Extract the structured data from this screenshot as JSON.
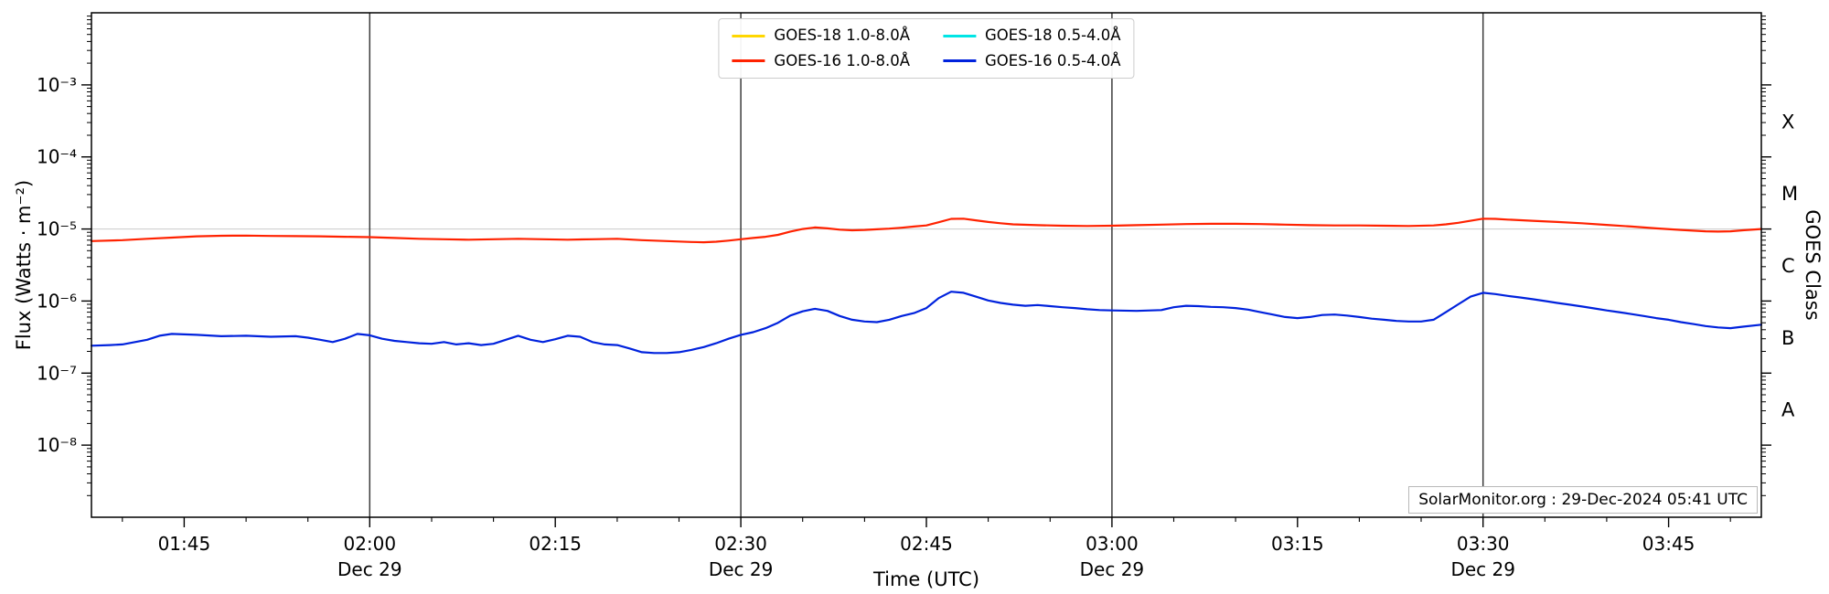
{
  "chart_data": {
    "type": "line",
    "title": "",
    "xlabel": "Time (UTC)",
    "ylabel_left": "Flux (Watts · m⁻²)",
    "ylabel_right": "GOES Class",
    "annotation": "SolarMonitor.org : 29-Dec-2024 05:41 UTC",
    "x_unit": "minutes after 00:00 UTC, Dec 29 2024",
    "xlim": [
      97.5,
      232.5
    ],
    "ylim": [
      1e-09,
      0.01
    ],
    "yscale": "log",
    "grid_y": [
      1e-05
    ],
    "x_minor_step": 5,
    "x_major_ticks": [
      {
        "t": 105,
        "label": "01:45"
      },
      {
        "t": 120,
        "label": "02:00"
      },
      {
        "t": 135,
        "label": "02:15"
      },
      {
        "t": 150,
        "label": "02:30"
      },
      {
        "t": 165,
        "label": "02:45"
      },
      {
        "t": 180,
        "label": "03:00"
      },
      {
        "t": 195,
        "label": "03:15"
      },
      {
        "t": 210,
        "label": "03:30"
      },
      {
        "t": 225,
        "label": "03:45"
      }
    ],
    "day_lines": [
      {
        "t": 120,
        "label": "Dec 29"
      },
      {
        "t": 150,
        "label": "Dec 29"
      },
      {
        "t": 180,
        "label": "Dec 29"
      },
      {
        "t": 210,
        "label": "Dec 29"
      }
    ],
    "y_major_ticks": [
      {
        "v": 0.001,
        "label": "10⁻³"
      },
      {
        "v": 0.0001,
        "label": "10⁻⁴"
      },
      {
        "v": 1e-05,
        "label": "10⁻⁵"
      },
      {
        "v": 1e-06,
        "label": "10⁻⁶"
      },
      {
        "v": 1e-07,
        "label": "10⁻⁷"
      },
      {
        "v": 1e-08,
        "label": "10⁻⁸"
      }
    ],
    "goes_class_labels": [
      {
        "v": 0.0003162,
        "label": "X"
      },
      {
        "v": 3.162e-05,
        "label": "M"
      },
      {
        "v": 3.162e-06,
        "label": "C"
      },
      {
        "v": 3.162e-07,
        "label": "B"
      },
      {
        "v": 3.162e-08,
        "label": "A"
      }
    ],
    "series": [
      {
        "name": "GOES-18 1.0-8.0Å",
        "color": "#ffd700",
        "scale": 1e-06,
        "points": []
      },
      {
        "name": "GOES-16 1.0-8.0Å",
        "color": "#ff2200",
        "scale": 1e-06,
        "points": [
          [
            97.5,
            6.8
          ],
          [
            100,
            7.0
          ],
          [
            102,
            7.3
          ],
          [
            104,
            7.6
          ],
          [
            106,
            7.9
          ],
          [
            108,
            8.05
          ],
          [
            110,
            8.1
          ],
          [
            112,
            8.0
          ],
          [
            114,
            7.95
          ],
          [
            116,
            7.9
          ],
          [
            118,
            7.8
          ],
          [
            120,
            7.7
          ],
          [
            122,
            7.5
          ],
          [
            124,
            7.3
          ],
          [
            126,
            7.2
          ],
          [
            128,
            7.1
          ],
          [
            130,
            7.2
          ],
          [
            132,
            7.3
          ],
          [
            134,
            7.2
          ],
          [
            136,
            7.1
          ],
          [
            138,
            7.2
          ],
          [
            140,
            7.3
          ],
          [
            142,
            7.0
          ],
          [
            144,
            6.8
          ],
          [
            146,
            6.6
          ],
          [
            147,
            6.55
          ],
          [
            148,
            6.65
          ],
          [
            149,
            6.9
          ],
          [
            150,
            7.2
          ],
          [
            151,
            7.5
          ],
          [
            152,
            7.8
          ],
          [
            153,
            8.3
          ],
          [
            154,
            9.2
          ],
          [
            155,
            10.0
          ],
          [
            156,
            10.5
          ],
          [
            157,
            10.2
          ],
          [
            158,
            9.8
          ],
          [
            159,
            9.6
          ],
          [
            160,
            9.7
          ],
          [
            161,
            9.9
          ],
          [
            162,
            10.1
          ],
          [
            163,
            10.4
          ],
          [
            164,
            10.8
          ],
          [
            165,
            11.2
          ],
          [
            166,
            12.4
          ],
          [
            167,
            13.8
          ],
          [
            168,
            13.9
          ],
          [
            169,
            13.2
          ],
          [
            170,
            12.5
          ],
          [
            171,
            12.0
          ],
          [
            172,
            11.6
          ],
          [
            174,
            11.3
          ],
          [
            176,
            11.1
          ],
          [
            178,
            11.0
          ],
          [
            180,
            11.1
          ],
          [
            182,
            11.3
          ],
          [
            184,
            11.5
          ],
          [
            186,
            11.7
          ],
          [
            188,
            11.8
          ],
          [
            190,
            11.8
          ],
          [
            192,
            11.7
          ],
          [
            194,
            11.5
          ],
          [
            196,
            11.3
          ],
          [
            198,
            11.2
          ],
          [
            200,
            11.2
          ],
          [
            202,
            11.1
          ],
          [
            204,
            11.0
          ],
          [
            206,
            11.2
          ],
          [
            207,
            11.6
          ],
          [
            208,
            12.2
          ],
          [
            209,
            13.0
          ],
          [
            210,
            13.9
          ],
          [
            211,
            13.8
          ],
          [
            212,
            13.5
          ],
          [
            214,
            13.0
          ],
          [
            216,
            12.5
          ],
          [
            218,
            12.0
          ],
          [
            220,
            11.4
          ],
          [
            222,
            10.8
          ],
          [
            224,
            10.2
          ],
          [
            226,
            9.7
          ],
          [
            228,
            9.3
          ],
          [
            229,
            9.2
          ],
          [
            230,
            9.3
          ],
          [
            231,
            9.6
          ],
          [
            232.5,
            10.0
          ]
        ]
      },
      {
        "name": "GOES-18 0.5-4.0Å",
        "color": "#00e5e5",
        "scale": 1e-07,
        "points": []
      },
      {
        "name": "GOES-16 0.5-4.0Å",
        "color": "#0022dd",
        "scale": 1e-07,
        "points": [
          [
            97.5,
            2.4
          ],
          [
            99,
            2.45
          ],
          [
            100,
            2.5
          ],
          [
            102,
            2.9
          ],
          [
            103,
            3.3
          ],
          [
            104,
            3.5
          ],
          [
            106,
            3.4
          ],
          [
            108,
            3.25
          ],
          [
            110,
            3.3
          ],
          [
            112,
            3.2
          ],
          [
            114,
            3.25
          ],
          [
            115,
            3.1
          ],
          [
            116,
            2.9
          ],
          [
            117,
            2.7
          ],
          [
            118,
            3.0
          ],
          [
            119,
            3.5
          ],
          [
            120,
            3.35
          ],
          [
            121,
            3.0
          ],
          [
            122,
            2.8
          ],
          [
            123,
            2.7
          ],
          [
            124,
            2.6
          ],
          [
            125,
            2.55
          ],
          [
            126,
            2.7
          ],
          [
            127,
            2.5
          ],
          [
            128,
            2.6
          ],
          [
            129,
            2.45
          ],
          [
            130,
            2.55
          ],
          [
            131,
            2.9
          ],
          [
            132,
            3.3
          ],
          [
            133,
            2.9
          ],
          [
            134,
            2.7
          ],
          [
            135,
            2.95
          ],
          [
            136,
            3.3
          ],
          [
            137,
            3.2
          ],
          [
            138,
            2.7
          ],
          [
            139,
            2.5
          ],
          [
            140,
            2.45
          ],
          [
            141,
            2.2
          ],
          [
            142,
            1.95
          ],
          [
            143,
            1.9
          ],
          [
            144,
            1.9
          ],
          [
            145,
            1.95
          ],
          [
            146,
            2.1
          ],
          [
            147,
            2.3
          ],
          [
            148,
            2.6
          ],
          [
            149,
            3.0
          ],
          [
            150,
            3.4
          ],
          [
            151,
            3.7
          ],
          [
            152,
            4.2
          ],
          [
            153,
            5.0
          ],
          [
            154,
            6.3
          ],
          [
            155,
            7.2
          ],
          [
            156,
            7.8
          ],
          [
            157,
            7.3
          ],
          [
            158,
            6.2
          ],
          [
            159,
            5.5
          ],
          [
            160,
            5.2
          ],
          [
            161,
            5.1
          ],
          [
            162,
            5.5
          ],
          [
            163,
            6.2
          ],
          [
            164,
            6.8
          ],
          [
            165,
            8.0
          ],
          [
            166,
            11.0
          ],
          [
            167,
            13.5
          ],
          [
            168,
            13.0
          ],
          [
            169,
            11.5
          ],
          [
            170,
            10.2
          ],
          [
            171,
            9.4
          ],
          [
            172,
            8.9
          ],
          [
            173,
            8.6
          ],
          [
            174,
            8.8
          ],
          [
            175,
            8.5
          ],
          [
            176,
            8.2
          ],
          [
            177,
            8.0
          ],
          [
            178,
            7.7
          ],
          [
            179,
            7.5
          ],
          [
            180,
            7.4
          ],
          [
            182,
            7.3
          ],
          [
            184,
            7.5
          ],
          [
            185,
            8.2
          ],
          [
            186,
            8.6
          ],
          [
            187,
            8.5
          ],
          [
            188,
            8.3
          ],
          [
            189,
            8.2
          ],
          [
            190,
            8.0
          ],
          [
            191,
            7.6
          ],
          [
            192,
            7.0
          ],
          [
            193,
            6.5
          ],
          [
            194,
            6.0
          ],
          [
            195,
            5.8
          ],
          [
            196,
            6.0
          ],
          [
            197,
            6.4
          ],
          [
            198,
            6.5
          ],
          [
            199,
            6.3
          ],
          [
            200,
            6.0
          ],
          [
            201,
            5.7
          ],
          [
            202,
            5.5
          ],
          [
            203,
            5.3
          ],
          [
            204,
            5.2
          ],
          [
            205,
            5.2
          ],
          [
            206,
            5.5
          ],
          [
            207,
            7.0
          ],
          [
            208,
            9.0
          ],
          [
            209,
            11.5
          ],
          [
            210,
            13.0
          ],
          [
            211,
            12.5
          ],
          [
            212,
            11.8
          ],
          [
            213,
            11.2
          ],
          [
            214,
            10.6
          ],
          [
            215,
            10.0
          ],
          [
            216,
            9.4
          ],
          [
            217,
            8.9
          ],
          [
            218,
            8.4
          ],
          [
            219,
            7.9
          ],
          [
            220,
            7.4
          ],
          [
            221,
            7.0
          ],
          [
            222,
            6.6
          ],
          [
            223,
            6.2
          ],
          [
            224,
            5.8
          ],
          [
            225,
            5.5
          ],
          [
            226,
            5.1
          ],
          [
            227,
            4.8
          ],
          [
            228,
            4.5
          ],
          [
            229,
            4.3
          ],
          [
            230,
            4.2
          ],
          [
            231,
            4.4
          ],
          [
            232.5,
            4.7
          ]
        ]
      }
    ],
    "legend": {
      "position": "top-center",
      "columns": [
        [
          0,
          1
        ],
        [
          2,
          3
        ]
      ]
    }
  }
}
